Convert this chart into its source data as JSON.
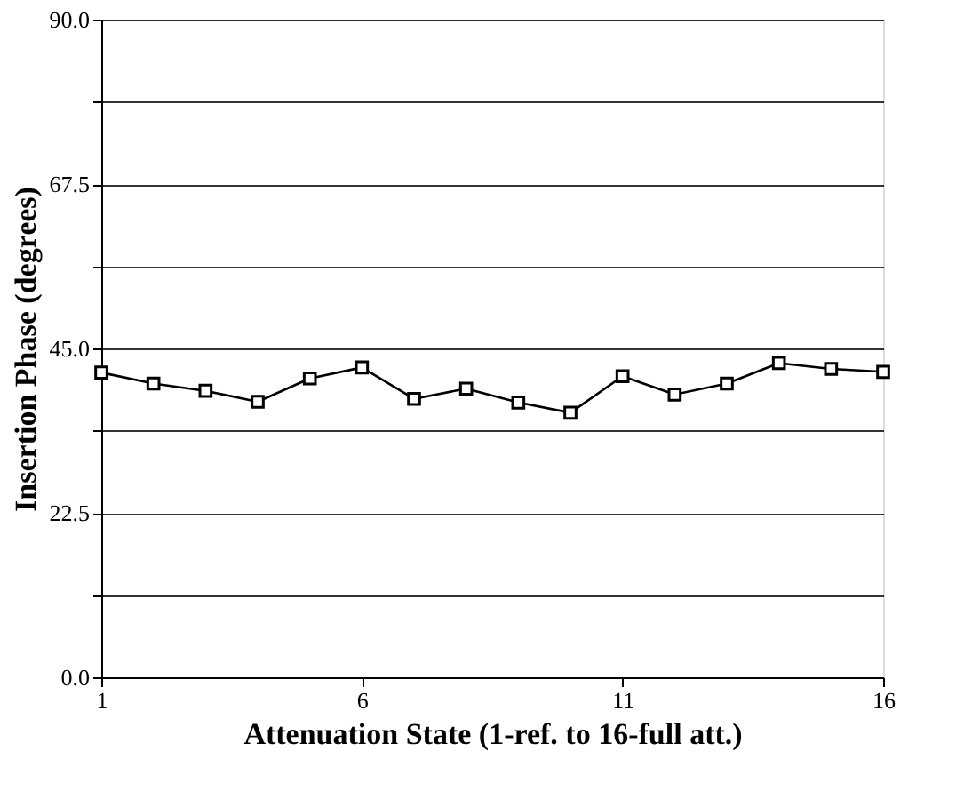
{
  "chart_data": {
    "type": "line",
    "xlabel": "Attenuation State (1-ref. to 16-full att.)",
    "ylabel": "Insertion Phase (degrees)",
    "x": [
      1,
      2,
      3,
      4,
      5,
      6,
      7,
      8,
      9,
      10,
      11,
      12,
      13,
      14,
      15,
      16
    ],
    "series": [
      {
        "color": "#000000",
        "values": [
          41.7,
          40.2,
          39.2,
          37.7,
          40.9,
          42.4,
          38.1,
          39.5,
          37.6,
          36.2,
          41.2,
          38.7,
          40.2,
          43.0,
          42.2,
          41.8
        ]
      }
    ],
    "xlim": [
      1,
      16
    ],
    "xticks": [
      1,
      6,
      11,
      16
    ],
    "ylim": [
      0,
      90
    ],
    "yticks": [
      {
        "value": 0,
        "label": "0.0"
      },
      {
        "value": 11.25,
        "label": null
      },
      {
        "value": 22.5,
        "label": "22.5"
      },
      {
        "value": 33.75,
        "label": null
      },
      {
        "value": 45,
        "label": "45.0"
      },
      {
        "value": 56.25,
        "label": null
      },
      {
        "value": 67.5,
        "label": "67.5"
      },
      {
        "value": 78.75,
        "label": null
      },
      {
        "value": 90,
        "label": "90.0"
      }
    ],
    "grid": "y",
    "marker": "square",
    "line_style": "solid"
  }
}
